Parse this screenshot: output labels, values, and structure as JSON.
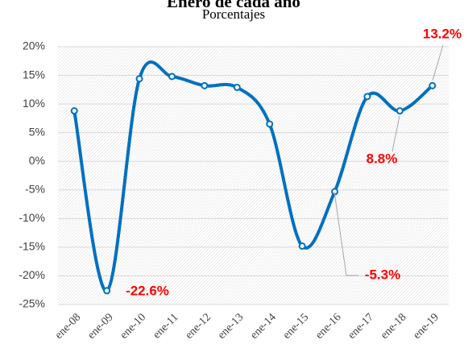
{
  "chart_data": {
    "type": "line",
    "title": "Enero de cada año",
    "subtitle": "Porcentajes",
    "categories": [
      "ene-08",
      "ene-09",
      "ene-10",
      "ene-11",
      "ene-12",
      "ene-13",
      "ene-14",
      "ene-15",
      "ene-16",
      "ene-17",
      "ene-18",
      "ene-19"
    ],
    "series": [
      {
        "color": "#0070c0",
        "values": [
          8.8,
          -22.6,
          14.4,
          14.8,
          13.2,
          12.9,
          6.5,
          -14.8,
          -5.3,
          11.3,
          8.8,
          13.2
        ],
        "value_labels": [
          null,
          "-22.6%",
          null,
          null,
          null,
          null,
          null,
          null,
          "-5.3%",
          null,
          "8.8%",
          "13.2%"
        ]
      }
    ],
    "label_color": "#ff0000",
    "ylim": [
      -25,
      20
    ],
    "yticks": [
      {
        "value": -25,
        "label": "-25%"
      },
      {
        "value": -20,
        "label": "-20%"
      },
      {
        "value": -15,
        "label": "-15%"
      },
      {
        "value": -10,
        "label": "-10%"
      },
      {
        "value": -5,
        "label": "-5%"
      },
      {
        "value": 0,
        "label": "0%"
      },
      {
        "value": 5,
        "label": "5%"
      },
      {
        "value": 10,
        "label": "10%"
      },
      {
        "value": 15,
        "label": "15%"
      },
      {
        "value": 20,
        "label": "20%"
      }
    ],
    "grid": true
  }
}
